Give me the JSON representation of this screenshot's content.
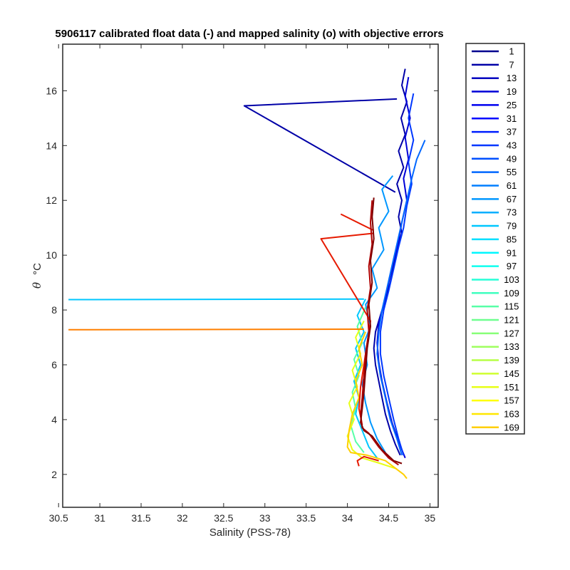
{
  "chart_data": {
    "type": "line",
    "title": "5906117 calibrated float data (-) and mapped salinity (o) with objective errors",
    "xlabel": "Salinity (PSS-78)",
    "ylabel_symbol": "θ",
    "ylabel_unit": "°C",
    "xlim": [
      30.55,
      35.1
    ],
    "ylim": [
      0.8,
      17.7
    ],
    "xticks": [
      30.5,
      31,
      31.5,
      32,
      32.5,
      33,
      33.5,
      34,
      34.5,
      35
    ],
    "yticks": [
      2,
      4,
      6,
      8,
      10,
      12,
      14,
      16
    ],
    "grid": false,
    "legend_position": "outside-right",
    "legend": [
      {
        "label": "1",
        "color": "#00008f"
      },
      {
        "label": "7",
        "color": "#0000a7"
      },
      {
        "label": "13",
        "color": "#0000bf"
      },
      {
        "label": "19",
        "color": "#0000d7"
      },
      {
        "label": "25",
        "color": "#0000ef"
      },
      {
        "label": "31",
        "color": "#0007ff"
      },
      {
        "label": "37",
        "color": "#001fff"
      },
      {
        "label": "43",
        "color": "#0037ff"
      },
      {
        "label": "49",
        "color": "#004fff"
      },
      {
        "label": "55",
        "color": "#0067ff"
      },
      {
        "label": "61",
        "color": "#007fff"
      },
      {
        "label": "67",
        "color": "#0097ff"
      },
      {
        "label": "73",
        "color": "#00afff"
      },
      {
        "label": "79",
        "color": "#00c7ff"
      },
      {
        "label": "85",
        "color": "#00dfff"
      },
      {
        "label": "91",
        "color": "#00f7ff"
      },
      {
        "label": "97",
        "color": "#0fffef"
      },
      {
        "label": "103",
        "color": "#27ffd7"
      },
      {
        "label": "109",
        "color": "#3fffbf"
      },
      {
        "label": "115",
        "color": "#57ffa7"
      },
      {
        "label": "121",
        "color": "#6fff8f"
      },
      {
        "label": "127",
        "color": "#87ff77"
      },
      {
        "label": "133",
        "color": "#9fff5f"
      },
      {
        "label": "139",
        "color": "#b7ff47"
      },
      {
        "label": "145",
        "color": "#cfff2f"
      },
      {
        "label": "151",
        "color": "#e7ff17"
      },
      {
        "label": "157",
        "color": "#ffff00"
      },
      {
        "label": "163",
        "color": "#ffe700"
      },
      {
        "label": "169",
        "color": "#ffcf00"
      }
    ],
    "series": [
      {
        "color": "#0000a7",
        "points": [
          [
            34.7,
            16.8
          ],
          [
            34.66,
            16.2
          ],
          [
            34.72,
            15.6
          ],
          [
            34.65,
            15.0
          ],
          [
            34.7,
            14.4
          ],
          [
            34.62,
            13.8
          ],
          [
            34.68,
            13.2
          ],
          [
            34.6,
            12.6
          ],
          [
            34.66,
            12.0
          ],
          [
            34.62,
            11.4
          ],
          [
            34.66,
            10.8
          ],
          [
            34.6,
            10.2
          ],
          [
            34.56,
            9.6
          ],
          [
            34.52,
            9.0
          ],
          [
            34.46,
            8.4
          ],
          [
            34.4,
            7.8
          ],
          [
            34.34,
            7.2
          ],
          [
            34.32,
            6.6
          ],
          [
            34.34,
            6.0
          ],
          [
            34.38,
            5.4
          ],
          [
            34.42,
            4.8
          ],
          [
            34.46,
            4.2
          ],
          [
            34.52,
            3.6
          ],
          [
            34.58,
            3.1
          ],
          [
            34.64,
            2.7
          ]
        ]
      },
      {
        "color": "#0000a7",
        "points": [
          [
            34.6,
            15.7
          ],
          [
            32.75,
            15.45
          ],
          [
            34.58,
            12.3
          ]
        ]
      },
      {
        "color": "#0000d7",
        "points": [
          [
            34.74,
            16.5
          ],
          [
            34.7,
            15.8
          ],
          [
            34.76,
            15.0
          ],
          [
            34.7,
            14.3
          ],
          [
            34.74,
            13.5
          ],
          [
            34.68,
            12.8
          ],
          [
            34.72,
            12.0
          ],
          [
            34.66,
            11.2
          ],
          [
            34.62,
            10.5
          ],
          [
            34.56,
            9.8
          ],
          [
            34.5,
            9.0
          ],
          [
            34.44,
            8.2
          ],
          [
            34.38,
            7.5
          ],
          [
            34.36,
            6.8
          ],
          [
            34.38,
            6.1
          ],
          [
            34.42,
            5.4
          ],
          [
            34.48,
            4.6
          ],
          [
            34.54,
            3.9
          ],
          [
            34.62,
            3.2
          ],
          [
            34.7,
            2.6
          ]
        ]
      },
      {
        "color": "#0037ff",
        "points": [
          [
            34.8,
            15.9
          ],
          [
            34.74,
            15.0
          ],
          [
            34.8,
            14.2
          ],
          [
            34.74,
            13.4
          ],
          [
            34.78,
            12.6
          ],
          [
            34.72,
            11.8
          ],
          [
            34.68,
            11.0
          ],
          [
            34.62,
            10.3
          ],
          [
            34.56,
            9.5
          ],
          [
            34.5,
            8.7
          ],
          [
            34.44,
            8.0
          ],
          [
            34.4,
            7.2
          ],
          [
            34.4,
            6.4
          ],
          [
            34.44,
            5.6
          ],
          [
            34.5,
            4.8
          ],
          [
            34.56,
            4.0
          ],
          [
            34.62,
            3.3
          ],
          [
            34.68,
            2.7
          ]
        ]
      },
      {
        "color": "#0067ff",
        "points": [
          [
            34.94,
            14.2
          ],
          [
            34.84,
            13.5
          ],
          [
            34.78,
            12.8
          ],
          [
            34.72,
            12.0
          ],
          [
            34.66,
            11.2
          ],
          [
            34.6,
            10.4
          ],
          [
            34.54,
            9.6
          ],
          [
            34.48,
            8.8
          ],
          [
            34.42,
            8.0
          ],
          [
            34.38,
            7.2
          ],
          [
            34.36,
            6.4
          ],
          [
            34.4,
            5.6
          ],
          [
            34.46,
            4.8
          ],
          [
            34.52,
            4.0
          ],
          [
            34.6,
            3.3
          ],
          [
            34.66,
            2.7
          ]
        ]
      },
      {
        "color": "#0097ff",
        "points": [
          [
            34.55,
            12.9
          ],
          [
            34.42,
            12.4
          ],
          [
            34.5,
            11.6
          ],
          [
            34.38,
            11.0
          ],
          [
            34.44,
            10.2
          ],
          [
            34.3,
            9.5
          ],
          [
            34.36,
            8.8
          ],
          [
            34.22,
            8.2
          ],
          [
            34.28,
            7.4
          ],
          [
            34.2,
            6.8
          ],
          [
            34.24,
            6.0
          ],
          [
            34.18,
            5.3
          ],
          [
            34.22,
            4.6
          ],
          [
            34.28,
            3.9
          ],
          [
            34.36,
            3.3
          ],
          [
            34.46,
            2.8
          ]
        ]
      },
      {
        "color": "#00c7ff",
        "points": [
          [
            34.2,
            8.4
          ],
          [
            30.62,
            8.38
          ]
        ]
      },
      {
        "color": "#00c7ff",
        "points": [
          [
            34.22,
            8.4
          ],
          [
            34.12,
            7.8
          ],
          [
            34.2,
            7.2
          ],
          [
            34.1,
            6.6
          ],
          [
            34.16,
            6.0
          ],
          [
            34.08,
            5.4
          ],
          [
            34.14,
            4.8
          ],
          [
            34.1,
            4.2
          ],
          [
            34.18,
            3.6
          ],
          [
            34.26,
            3.0
          ],
          [
            34.36,
            2.6
          ]
        ]
      },
      {
        "color": "#57ffa7",
        "points": [
          [
            34.22,
            8.1
          ],
          [
            34.12,
            7.4
          ],
          [
            34.18,
            6.8
          ],
          [
            34.08,
            6.2
          ],
          [
            34.14,
            5.6
          ],
          [
            34.06,
            5.0
          ],
          [
            34.1,
            4.4
          ],
          [
            34.04,
            3.8
          ],
          [
            34.1,
            3.2
          ],
          [
            34.2,
            2.8
          ]
        ]
      },
      {
        "color": "#e7ff17",
        "points": [
          [
            34.2,
            7.6
          ],
          [
            34.1,
            7.0
          ],
          [
            34.16,
            6.4
          ],
          [
            34.06,
            5.8
          ],
          [
            34.12,
            5.2
          ],
          [
            34.02,
            4.6
          ],
          [
            34.08,
            4.0
          ],
          [
            34.0,
            3.4
          ],
          [
            34.06,
            2.9
          ],
          [
            34.18,
            2.6
          ],
          [
            34.4,
            2.4
          ],
          [
            34.6,
            2.2
          ]
        ]
      },
      {
        "color": "#ffcf00",
        "points": [
          [
            34.22,
            7.2
          ],
          [
            34.14,
            6.6
          ],
          [
            34.18,
            6.0
          ],
          [
            34.1,
            5.4
          ],
          [
            34.14,
            4.8
          ],
          [
            34.06,
            4.2
          ],
          [
            34.02,
            3.6
          ],
          [
            34.0,
            3.0
          ],
          [
            34.04,
            2.8
          ],
          [
            34.24,
            2.7
          ],
          [
            34.46,
            2.5
          ],
          [
            34.68,
            2.0
          ],
          [
            34.72,
            1.85
          ]
        ]
      },
      {
        "color": "#ff7f00",
        "points": [
          [
            34.2,
            7.3
          ],
          [
            30.62,
            7.28
          ]
        ]
      },
      {
        "color": "#e61a00",
        "points": [
          [
            34.32,
            10.8
          ],
          [
            33.68,
            10.6
          ],
          [
            34.28,
            7.6
          ],
          [
            34.24,
            6.8
          ],
          [
            34.2,
            6.0
          ],
          [
            34.16,
            5.2
          ],
          [
            34.14,
            4.4
          ],
          [
            34.18,
            3.8
          ]
        ]
      },
      {
        "color": "#e61a00",
        "points": [
          [
            33.92,
            11.5
          ],
          [
            34.32,
            10.9
          ]
        ]
      },
      {
        "color": "#e61a00",
        "points": [
          [
            34.38,
            2.5
          ],
          [
            34.2,
            2.65
          ],
          [
            34.12,
            2.5
          ],
          [
            34.14,
            2.3
          ]
        ]
      },
      {
        "color": "#b00000",
        "points": [
          [
            34.3,
            12.0
          ],
          [
            34.28,
            11.2
          ],
          [
            34.3,
            10.4
          ],
          [
            34.26,
            9.6
          ],
          [
            34.28,
            8.8
          ],
          [
            34.24,
            8.0
          ],
          [
            34.26,
            7.2
          ],
          [
            34.22,
            6.4
          ],
          [
            34.2,
            5.6
          ],
          [
            34.18,
            4.8
          ],
          [
            34.16,
            4.2
          ],
          [
            34.18,
            3.7
          ],
          [
            34.26,
            3.5
          ],
          [
            34.38,
            3.0
          ],
          [
            34.5,
            2.6
          ],
          [
            34.62,
            2.35
          ]
        ]
      },
      {
        "color": "#800000",
        "points": [
          [
            34.32,
            12.1
          ],
          [
            34.3,
            11.4
          ],
          [
            34.32,
            10.6
          ],
          [
            34.28,
            9.8
          ],
          [
            34.3,
            9.0
          ],
          [
            34.26,
            8.2
          ],
          [
            34.28,
            7.4
          ],
          [
            34.24,
            6.6
          ],
          [
            34.22,
            5.8
          ],
          [
            34.2,
            5.0
          ],
          [
            34.18,
            4.4
          ],
          [
            34.16,
            3.9
          ],
          [
            34.2,
            3.6
          ],
          [
            34.3,
            3.4
          ],
          [
            34.42,
            2.9
          ],
          [
            34.56,
            2.5
          ],
          [
            34.66,
            2.4
          ]
        ]
      }
    ]
  }
}
